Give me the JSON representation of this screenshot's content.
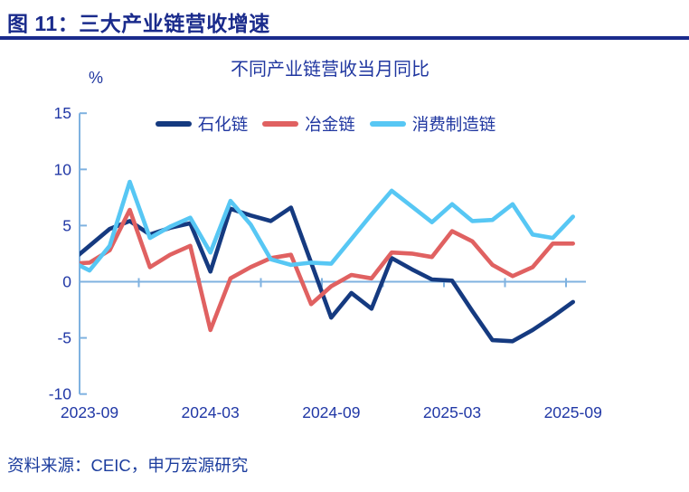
{
  "header": {
    "title": "图 11：三大产业链营收增速"
  },
  "footer": {
    "source": "资料来源：CEIC，申万宏源研究"
  },
  "chart_data": {
    "type": "line",
    "title": "不同产业链营收当月同比",
    "unit": "%",
    "grid": false,
    "legend_position": "top",
    "axis_color": "#7FB2E0",
    "ylim": [
      -10,
      15
    ],
    "yticks": [
      "15",
      "10",
      "5",
      "0",
      "-5",
      "-10"
    ],
    "ytick_values": [
      15,
      10,
      5,
      0,
      -5,
      -10
    ],
    "xtick_labels": [
      "2023-09",
      "2024-03",
      "2024-09",
      "2025-03",
      "2025-09"
    ],
    "xtick_month_indices": [
      1,
      7,
      13,
      19,
      25
    ],
    "x": [
      "2023-08",
      "2023-09",
      "2023-10",
      "2023-11",
      "2023-12",
      "2024-01",
      "2024-02",
      "2024-03",
      "2024-04",
      "2024-05",
      "2024-06",
      "2024-07",
      "2024-08",
      "2024-09",
      "2024-10",
      "2024-11",
      "2024-12",
      "2025-01",
      "2025-02",
      "2025-03",
      "2025-04",
      "2025-05",
      "2025-06",
      "2025-07",
      "2025-08",
      "2025-09"
    ],
    "series": [
      {
        "name": "石化链",
        "key": "petrochemical-chain",
        "color": "#153A80",
        "values": [
          1.7,
          3.2,
          4.7,
          5.4,
          4.2,
          4.8,
          5.2,
          0.9,
          6.5,
          5.9,
          5.4,
          6.6,
          1.7,
          -3.2,
          -1.0,
          -2.4,
          2.1,
          1.1,
          0.2,
          0.1,
          -2.6,
          -5.2,
          -5.3,
          -4.3,
          -3.1,
          -1.8
        ]
      },
      {
        "name": "冶金链",
        "key": "metallurgy-chain",
        "color": "#E06161",
        "values": [
          1.6,
          1.7,
          2.8,
          6.4,
          1.3,
          2.4,
          3.2,
          -4.3,
          0.3,
          1.3,
          2.1,
          2.4,
          -2.0,
          -0.4,
          0.6,
          0.3,
          2.6,
          2.5,
          2.2,
          4.5,
          3.6,
          1.5,
          0.5,
          1.3,
          3.4,
          3.4
        ]
      },
      {
        "name": "消费制造链",
        "key": "consumer-manufacturing-chain",
        "color": "#57C7F4",
        "values": [
          1.9,
          1.0,
          3.2,
          8.9,
          3.9,
          4.9,
          5.7,
          2.6,
          7.2,
          5.1,
          2.0,
          1.5,
          1.7,
          1.6,
          3.8,
          6.0,
          8.1,
          6.7,
          5.3,
          6.9,
          5.4,
          5.5,
          6.9,
          4.2,
          3.9,
          5.8
        ]
      }
    ]
  }
}
